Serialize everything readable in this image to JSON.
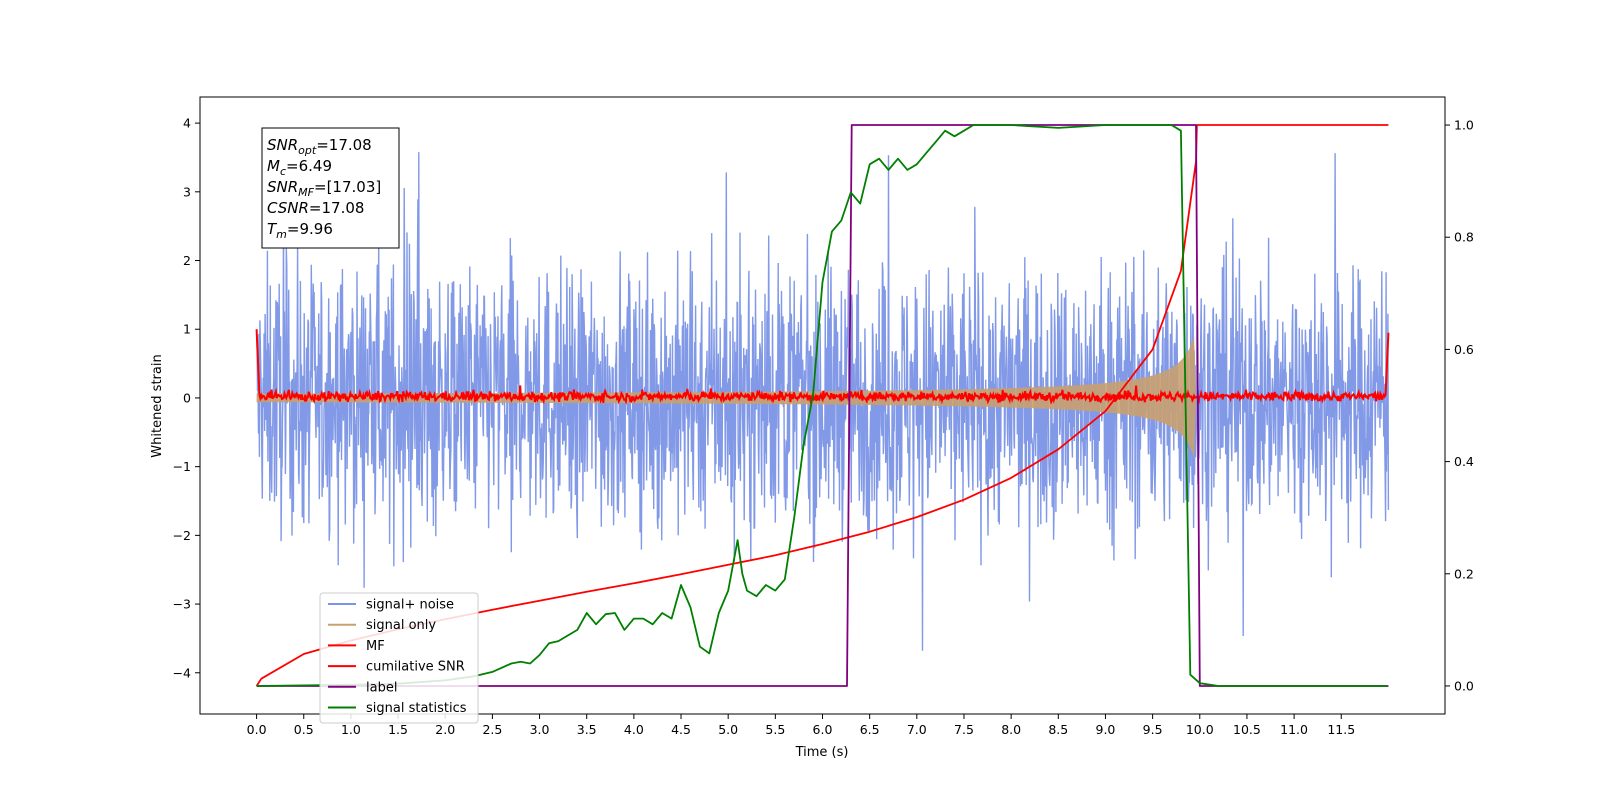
{
  "chart_data": {
    "type": "line",
    "xlabel": "Time (s)",
    "ylabel": "Whitened strain",
    "xlim": [
      -0.6,
      12.6
    ],
    "ylim": [
      -4.6,
      4.38
    ],
    "ylim_right": [
      -0.05,
      1.05
    ],
    "x_ticks": [
      0.0,
      0.5,
      1.0,
      1.5,
      2.0,
      2.5,
      3.0,
      3.5,
      4.0,
      4.5,
      5.0,
      5.5,
      6.0,
      6.5,
      7.0,
      7.5,
      8.0,
      8.5,
      9.0,
      9.5,
      10.0,
      10.5,
      11.0,
      11.5
    ],
    "x_tick_labels": [
      "0.0",
      "0.5",
      "1.0",
      "1.5",
      "2.0",
      "2.5",
      "3.0",
      "3.5",
      "4.0",
      "4.5",
      "5.0",
      "5.5",
      "6.0",
      "6.5",
      "7.0",
      "7.5",
      "8.0",
      "8.5",
      "9.0",
      "9.5",
      "10.0",
      "10.5",
      "11.0",
      "11.5"
    ],
    "y_ticks": [
      -4,
      -3,
      -2,
      -1,
      0,
      1,
      2,
      3,
      4
    ],
    "y_tick_labels": [
      "−4",
      "−3",
      "−2",
      "−1",
      "0",
      "1",
      "2",
      "3",
      "4"
    ],
    "y2_ticks": [
      0.0,
      0.2,
      0.4,
      0.6,
      0.8,
      1.0
    ],
    "y2_tick_labels": [
      "0.0",
      "0.2",
      "0.4",
      "0.6",
      "0.8",
      "1.0"
    ],
    "grid": false,
    "legend_position": "lower-left",
    "textbox": {
      "lines": [
        {
          "sym": "SNR",
          "sub": "opt",
          "val": "=17.08"
        },
        {
          "sym": "M",
          "sub": "c",
          "val": "=6.49"
        },
        {
          "sym": "SNR",
          "sub": "MF",
          "val": "=[17.03]"
        },
        {
          "sym": "CSNR",
          "sub": "",
          "val": "=17.08"
        },
        {
          "sym": "T",
          "sub": "m",
          "val": "=9.96"
        }
      ]
    },
    "series": [
      {
        "name": "signal+ noise",
        "color": "#7a94e6",
        "kind": "noise",
        "axis": "left",
        "x_range": [
          0.0,
          12.0
        ],
        "noise_amplitude": 2.0
      },
      {
        "name": "signal only",
        "color": "#c8a070",
        "kind": "chirp-envelope",
        "axis": "left",
        "x_range": [
          0.0,
          9.96
        ],
        "amplitude_start": 0.03,
        "amplitude_peak": 1.05
      },
      {
        "name": "MF",
        "color": "#ff0000",
        "kind": "noise",
        "axis": "left",
        "x_range": [
          0.0,
          12.0
        ],
        "center": 0.0,
        "noise_amplitude": 0.12,
        "edge_value": 1.0
      },
      {
        "name": "cumilative SNR",
        "color": "#ff0000",
        "axis": "right",
        "x": [
          0.0,
          0.05,
          0.5,
          1.0,
          1.5,
          2.0,
          2.5,
          3.0,
          3.5,
          4.0,
          4.5,
          5.0,
          5.5,
          6.0,
          6.5,
          7.0,
          7.5,
          8.0,
          8.5,
          9.0,
          9.5,
          9.8,
          9.96,
          9.97,
          12.0
        ],
        "y": [
          0.0,
          0.013,
          0.057,
          0.081,
          0.101,
          0.119,
          0.136,
          0.152,
          0.168,
          0.183,
          0.199,
          0.216,
          0.233,
          0.253,
          0.275,
          0.301,
          0.332,
          0.371,
          0.422,
          0.49,
          0.6,
          0.74,
          0.935,
          1.0,
          1.0
        ]
      },
      {
        "name": "label",
        "color": "#800080",
        "axis": "right",
        "x": [
          0.0,
          6.26,
          6.31,
          9.96,
          10.0,
          12.0
        ],
        "y": [
          0.0,
          0.0,
          1.0,
          1.0,
          0.0,
          0.0
        ]
      },
      {
        "name": "signal statistics",
        "color": "#008000",
        "axis": "right",
        "x": [
          0.0,
          0.5,
          1.0,
          1.5,
          2.0,
          2.3,
          2.5,
          2.7,
          2.8,
          2.9,
          3.0,
          3.1,
          3.2,
          3.3,
          3.4,
          3.5,
          3.6,
          3.7,
          3.8,
          3.9,
          4.0,
          4.1,
          4.2,
          4.3,
          4.4,
          4.5,
          4.6,
          4.7,
          4.8,
          4.9,
          5.0,
          5.1,
          5.15,
          5.2,
          5.3,
          5.4,
          5.5,
          5.6,
          5.7,
          5.8,
          5.9,
          6.0,
          6.1,
          6.2,
          6.3,
          6.4,
          6.5,
          6.6,
          6.7,
          6.8,
          6.9,
          7.0,
          7.1,
          7.2,
          7.3,
          7.4,
          7.5,
          7.6,
          7.8,
          8.0,
          8.5,
          9.0,
          9.5,
          9.7,
          9.8,
          9.85,
          9.9,
          10.0,
          10.2,
          11.0,
          11.99
        ],
        "y": [
          0.0,
          0.001,
          0.002,
          0.004,
          0.01,
          0.017,
          0.025,
          0.04,
          0.043,
          0.04,
          0.055,
          0.076,
          0.08,
          0.09,
          0.1,
          0.13,
          0.11,
          0.128,
          0.13,
          0.1,
          0.12,
          0.12,
          0.11,
          0.13,
          0.12,
          0.18,
          0.14,
          0.07,
          0.058,
          0.13,
          0.17,
          0.26,
          0.2,
          0.17,
          0.16,
          0.18,
          0.17,
          0.19,
          0.3,
          0.43,
          0.52,
          0.72,
          0.81,
          0.83,
          0.88,
          0.86,
          0.93,
          0.94,
          0.92,
          0.94,
          0.92,
          0.93,
          0.95,
          0.97,
          0.99,
          0.98,
          0.99,
          1.0,
          1.0,
          1.0,
          0.995,
          1.0,
          1.0,
          1.0,
          0.99,
          0.5,
          0.02,
          0.005,
          0.0,
          0.0,
          0.0
        ]
      }
    ]
  }
}
